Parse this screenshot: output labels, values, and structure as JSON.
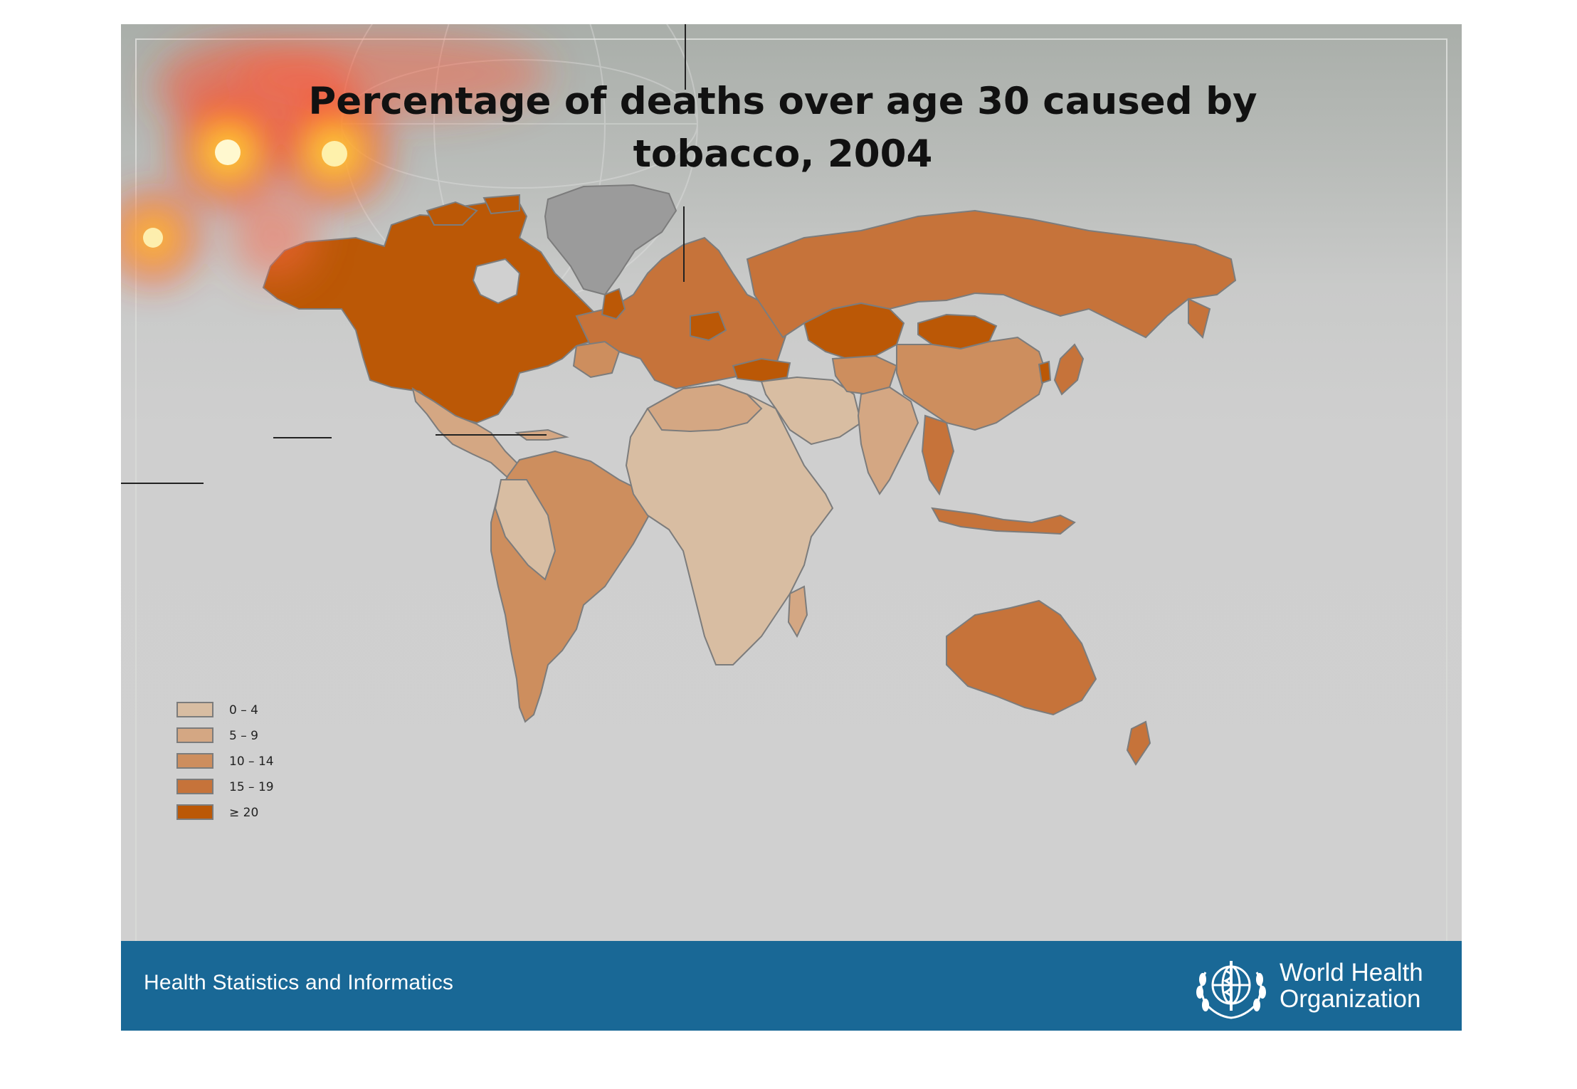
{
  "map_title": "Percentage of deaths over age 30 caused by tobacco, 2004",
  "footer": {
    "left_text": "Health Statistics and Informatics",
    "org_name_line1": "World Health",
    "org_name_line2": "Organization",
    "logo_icon": "who-emblem"
  },
  "legend": {
    "items": [
      {
        "label": "0 – 4",
        "color": "#d8bda2"
      },
      {
        "label": "5 – 9",
        "color": "#d4a783"
      },
      {
        "label": "10 – 14",
        "color": "#cd8e5e"
      },
      {
        "label": "15 – 19",
        "color": "#c6733a"
      },
      {
        "label": "≥ 20",
        "color": "#bb5806"
      }
    ],
    "no_data_color": "#9b9b9b"
  },
  "colors": {
    "footer_bar": "#196896",
    "ocean": "#d0d0d0",
    "heat_overlay": "#ff3a1a"
  }
}
